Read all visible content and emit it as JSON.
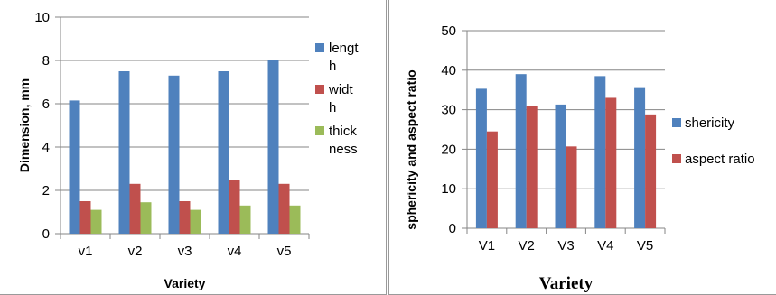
{
  "colors": {
    "blue": "#4F81BD",
    "red": "#C0504D",
    "green": "#9BBB59",
    "grid": "#868686",
    "axis": "#868686"
  },
  "chart_data": [
    {
      "type": "bar",
      "title": "",
      "xlabel": "Variety",
      "ylabel": "Dimension, mm",
      "ylim": [
        0,
        10
      ],
      "yticks": [
        "0",
        "2",
        "4",
        "6",
        "8",
        "10"
      ],
      "categories": [
        "v1",
        "v2",
        "v3",
        "v4",
        "v5"
      ],
      "series": [
        {
          "name": "length",
          "legend_lines": [
            "lengt",
            "h"
          ],
          "color": "#4F81BD",
          "values": [
            6.15,
            7.5,
            7.3,
            7.5,
            8.0
          ]
        },
        {
          "name": "width",
          "legend_lines": [
            "widt",
            "h"
          ],
          "color": "#C0504D",
          "values": [
            1.5,
            2.3,
            1.5,
            2.5,
            2.3
          ]
        },
        {
          "name": "thickness",
          "legend_lines": [
            "thick",
            "ness"
          ],
          "color": "#9BBB59",
          "values": [
            1.1,
            1.45,
            1.1,
            1.3,
            1.3
          ]
        }
      ],
      "grid": true,
      "legend": "right"
    },
    {
      "type": "bar",
      "title": "",
      "xlabel": "Variety",
      "ylabel": "sphericity and aspect ratio",
      "ylim": [
        0,
        50
      ],
      "yticks": [
        "0",
        "10",
        "20",
        "30",
        "40",
        "50"
      ],
      "categories": [
        "V1",
        "V2",
        "V3",
        "V4",
        "V5"
      ],
      "series": [
        {
          "name": "shericity",
          "legend_lines": [
            "shericity"
          ],
          "color": "#4F81BD",
          "values": [
            35.3,
            39.0,
            31.3,
            38.5,
            35.7
          ]
        },
        {
          "name": "aspect ratio",
          "legend_lines": [
            "aspect ratio"
          ],
          "color": "#C0504D",
          "values": [
            24.5,
            31.0,
            20.7,
            33.0,
            28.8
          ]
        }
      ],
      "grid": true,
      "legend": "right"
    }
  ]
}
